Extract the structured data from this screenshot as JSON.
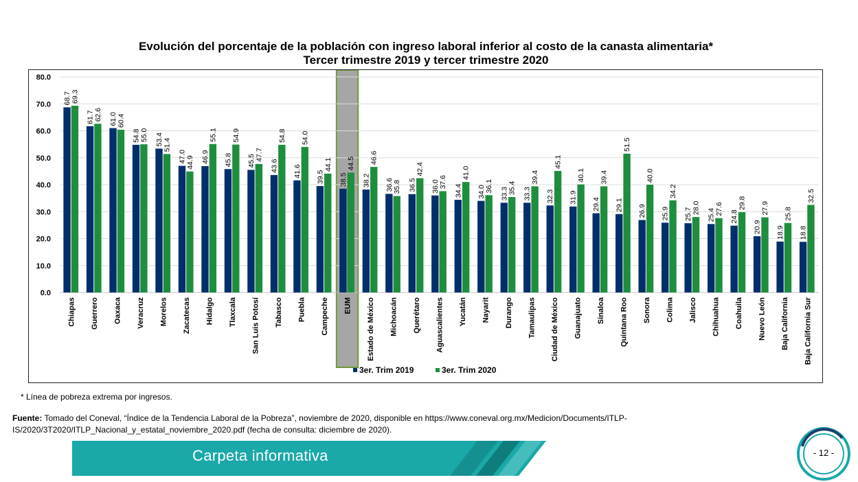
{
  "chart_data": {
    "type": "bar",
    "title": "Evolución del porcentaje de la población con ingreso laboral inferior al costo de la canasta alimentaria*",
    "subtitle": "Tercer trimestre 2019 y tercer trimestre 2020",
    "xlabel": "",
    "ylabel": "",
    "ylim": [
      0,
      80
    ],
    "yticks": [
      "0.0",
      "10.0",
      "20.0",
      "30.0",
      "40.0",
      "50.0",
      "60.0",
      "70.0",
      "80.0"
    ],
    "grid": true,
    "legend_position": "bottom",
    "highlight_category": "EUM",
    "categories": [
      "Chiapas",
      "Guerrero",
      "Oaxaca",
      "Veracruz",
      "Morelos",
      "Zacatecas",
      "Hidalgo",
      "Tlaxcala",
      "San Luis Potosí",
      "Tabasco",
      "Puebla",
      "Campeche",
      "EUM",
      "Estado de México",
      "Michoacán",
      "Querétaro",
      "Aguascalientes",
      "Yucatán",
      "Nayarit",
      "Durango",
      "Tamaulipas",
      "Ciudad de México",
      "Guanajuato",
      "Sinaloa",
      "Quintana Roo",
      "Sonora",
      "Colima",
      "Jalisco",
      "Chihuahua",
      "Coahuila",
      "Nuevo León",
      "Baja California",
      "Baja California Sur"
    ],
    "series": [
      {
        "name": "3er. Trim 2019",
        "color": "#002f6c",
        "values": [
          68.7,
          61.7,
          61.0,
          54.8,
          53.4,
          47.0,
          46.9,
          45.8,
          45.5,
          43.6,
          41.6,
          39.5,
          38.5,
          38.2,
          36.6,
          36.5,
          36.0,
          34.4,
          34.0,
          33.3,
          33.3,
          32.3,
          31.9,
          29.4,
          29.1,
          26.9,
          25.9,
          25.7,
          25.4,
          24.8,
          20.9,
          18.9,
          18.8
        ]
      },
      {
        "name": "3er. Trim 2020",
        "color": "#1e8e3e",
        "values": [
          69.3,
          62.6,
          60.4,
          55.0,
          51.4,
          44.9,
          55.1,
          54.9,
          47.7,
          54.8,
          54.0,
          44.1,
          44.5,
          46.6,
          35.8,
          42.4,
          37.6,
          41.0,
          36.1,
          35.4,
          39.4,
          45.1,
          40.1,
          39.4,
          51.5,
          40.0,
          34.2,
          28.0,
          27.6,
          29.8,
          27.9,
          25.8,
          32.5
        ]
      }
    ]
  },
  "footnote": "* Línea de pobreza extrema por ingresos.",
  "source": {
    "label": "Fuente:",
    "text": " Tomado del Coneval, “Índice de la Tendencia Laboral de la Pobreza”, noviembre de 2020, disponible en https://www.coneval.org.mx/Medicion/Documents/ITLP-IS/2020/3T2020/ITLP_Nacional_y_estatal_noviembre_2020.pdf (fecha de consulta: diciembre de 2020)."
  },
  "banner": {
    "text": "Carpeta informativa",
    "color": "#1aa8a8"
  },
  "page": {
    "number": "- 12 -"
  }
}
